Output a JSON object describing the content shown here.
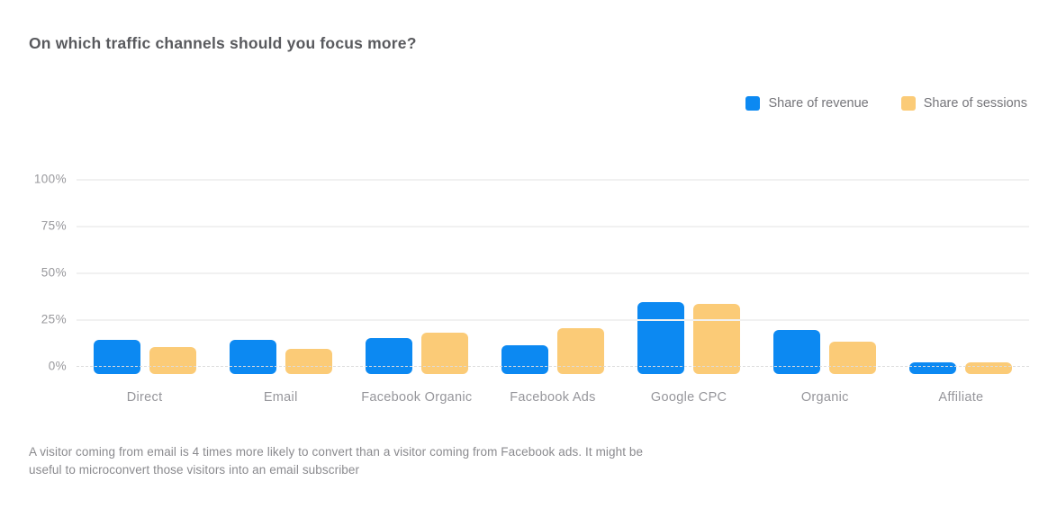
{
  "title": "On which traffic channels should you focus more?",
  "legend": [
    {
      "label": "Share of revenue",
      "color": "#0C89F2"
    },
    {
      "label": "Share of sessions",
      "color": "#FBCB77"
    }
  ],
  "footnote_lines": [
    "A visitor coming from email is 4 times more likely to convert than a visitor coming from Facebook ads. It might be",
    "useful to microconvert those visitors into an email subscriber"
  ],
  "chart_data": {
    "type": "bar",
    "title": "On which traffic channels should you focus more?",
    "categories": [
      "Direct",
      "Email",
      "Facebook Organic",
      "Facebook Ads",
      "Google CPC",
      "Organic",
      "Affiliate"
    ],
    "series": [
      {
        "name": "Share of revenue",
        "color": "#0C89F2",
        "values": [
          14,
          14,
          15,
          11,
          34,
          19,
          2
        ]
      },
      {
        "name": "Share of sessions",
        "color": "#FBCB77",
        "values": [
          10,
          9,
          18,
          20,
          33,
          13,
          2
        ]
      }
    ],
    "xlabel": "",
    "ylabel": "",
    "ylim": [
      0,
      100
    ],
    "yticks": [
      0,
      25,
      50,
      75,
      100
    ],
    "ytick_labels": [
      "0%",
      "25%",
      "50%",
      "75%",
      "100%"
    ],
    "grid": true,
    "legend_position": "top-right"
  }
}
